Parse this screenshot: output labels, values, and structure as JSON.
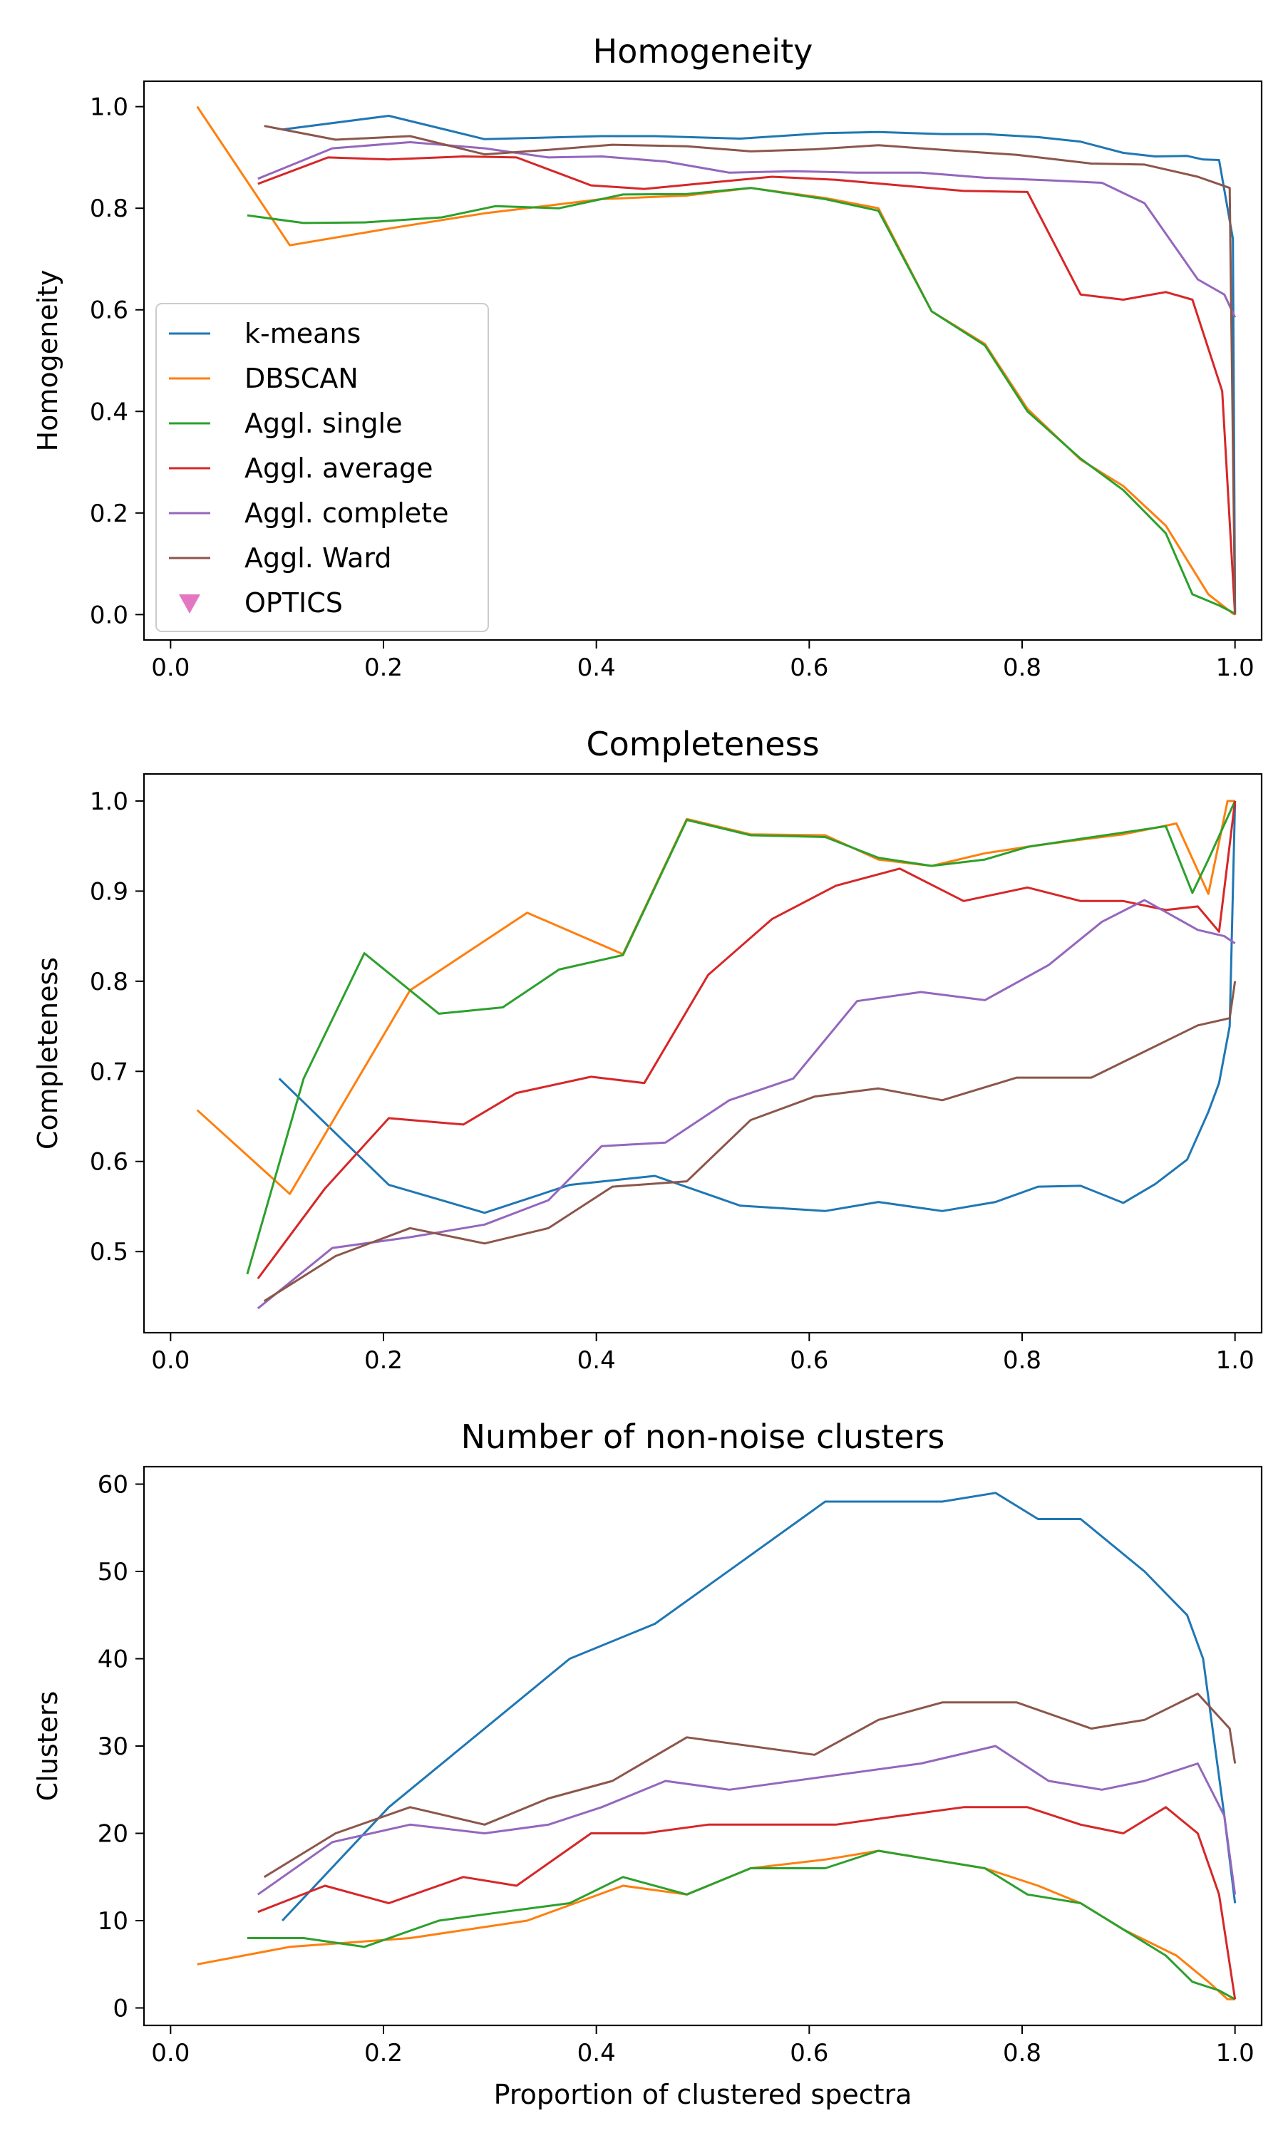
{
  "colors": {
    "k-means": "#1f77b4",
    "DBSCAN": "#ff7f0e",
    "Aggl. single": "#2ca02c",
    "Aggl. average": "#d62728",
    "Aggl. complete": "#9467bd",
    "Aggl. Ward": "#8c564b",
    "OPTICS": "#e377c2"
  },
  "legend": {
    "placement": "center-left",
    "entries": [
      {
        "label": "k-means",
        "marker": "line"
      },
      {
        "label": "DBSCAN",
        "marker": "line"
      },
      {
        "label": "Aggl. single",
        "marker": "line"
      },
      {
        "label": "Aggl. average",
        "marker": "line"
      },
      {
        "label": "Aggl. complete",
        "marker": "line"
      },
      {
        "label": "Aggl. Ward",
        "marker": "line"
      },
      {
        "label": "OPTICS",
        "marker": "triangle-down"
      }
    ]
  },
  "chart_data": [
    {
      "type": "line",
      "title": "Homogeneity",
      "xlabel": "",
      "ylabel": "Homogeneity",
      "xlim": [
        -0.025,
        1.025
      ],
      "ylim": [
        -0.05,
        1.05
      ],
      "xticks": [
        0.0,
        0.2,
        0.4,
        0.6,
        0.8,
        1.0
      ],
      "xtick_labels": [
        "0.0",
        "0.2",
        "0.4",
        "0.6",
        "0.8",
        "1.0"
      ],
      "yticks": [
        0.0,
        0.2,
        0.4,
        0.6,
        0.8,
        1.0
      ],
      "ytick_labels": [
        "0.0",
        "0.2",
        "0.4",
        "0.6",
        "0.8",
        "1.0"
      ],
      "grid": false,
      "series": [
        {
          "name": "k-means",
          "x": [
            0.105,
            0.205,
            0.295,
            0.405,
            0.455,
            0.535,
            0.615,
            0.665,
            0.725,
            0.765,
            0.815,
            0.855,
            0.895,
            0.925,
            0.955,
            0.97,
            0.985,
            0.998,
            1.0
          ],
          "y": [
            0.955,
            0.982,
            0.936,
            0.942,
            0.942,
            0.937,
            0.948,
            0.95,
            0.946,
            0.946,
            0.94,
            0.931,
            0.909,
            0.902,
            0.903,
            0.896,
            0.895,
            0.74,
            0.005
          ]
        },
        {
          "name": "DBSCAN",
          "x": [
            0.025,
            0.112,
            0.205,
            0.295,
            0.405,
            0.485,
            0.545,
            0.615,
            0.665,
            0.715,
            0.765,
            0.805,
            0.855,
            0.895,
            0.935,
            0.975,
            0.998,
            1.0
          ],
          "y": [
            1.0,
            0.727,
            0.76,
            0.79,
            0.818,
            0.825,
            0.84,
            0.82,
            0.8,
            0.597,
            0.533,
            0.405,
            0.305,
            0.253,
            0.175,
            0.04,
            0.002,
            0.0
          ]
        },
        {
          "name": "Aggl. single",
          "x": [
            0.072,
            0.125,
            0.182,
            0.255,
            0.305,
            0.365,
            0.425,
            0.485,
            0.545,
            0.615,
            0.665,
            0.715,
            0.765,
            0.805,
            0.855,
            0.895,
            0.935,
            0.96,
            0.985,
            1.0
          ],
          "y": [
            0.786,
            0.771,
            0.772,
            0.782,
            0.804,
            0.8,
            0.827,
            0.828,
            0.84,
            0.818,
            0.795,
            0.597,
            0.53,
            0.4,
            0.307,
            0.245,
            0.16,
            0.04,
            0.018,
            0.002
          ]
        },
        {
          "name": "Aggl. average",
          "x": [
            0.082,
            0.148,
            0.205,
            0.275,
            0.325,
            0.395,
            0.445,
            0.505,
            0.565,
            0.625,
            0.685,
            0.745,
            0.805,
            0.855,
            0.895,
            0.935,
            0.96,
            0.988,
            1.0
          ],
          "y": [
            0.848,
            0.9,
            0.896,
            0.902,
            0.9,
            0.845,
            0.838,
            0.85,
            0.862,
            0.856,
            0.845,
            0.834,
            0.832,
            0.63,
            0.62,
            0.635,
            0.62,
            0.44,
            0.0
          ]
        },
        {
          "name": "Aggl. complete",
          "x": [
            0.082,
            0.152,
            0.225,
            0.295,
            0.355,
            0.405,
            0.465,
            0.525,
            0.585,
            0.645,
            0.705,
            0.765,
            0.825,
            0.875,
            0.915,
            0.965,
            0.99,
            1.0
          ],
          "y": [
            0.858,
            0.918,
            0.93,
            0.918,
            0.9,
            0.902,
            0.892,
            0.87,
            0.873,
            0.87,
            0.87,
            0.86,
            0.855,
            0.85,
            0.81,
            0.66,
            0.63,
            0.585
          ]
        },
        {
          "name": "Aggl. Ward",
          "x": [
            0.088,
            0.155,
            0.225,
            0.295,
            0.355,
            0.415,
            0.485,
            0.545,
            0.605,
            0.665,
            0.725,
            0.795,
            0.865,
            0.915,
            0.965,
            0.995,
            1.0
          ],
          "y": [
            0.962,
            0.935,
            0.942,
            0.906,
            0.915,
            0.925,
            0.922,
            0.912,
            0.916,
            0.924,
            0.915,
            0.905,
            0.888,
            0.886,
            0.862,
            0.84,
            0.0
          ]
        }
      ]
    },
    {
      "type": "line",
      "title": "Completeness",
      "xlabel": "",
      "ylabel": "Completeness",
      "xlim": [
        -0.025,
        1.025
      ],
      "ylim": [
        0.41,
        1.03
      ],
      "xticks": [
        0.0,
        0.2,
        0.4,
        0.6,
        0.8,
        1.0
      ],
      "xtick_labels": [
        "0.0",
        "0.2",
        "0.4",
        "0.6",
        "0.8",
        "1.0"
      ],
      "yticks": [
        0.5,
        0.6,
        0.7,
        0.8,
        0.9,
        1.0
      ],
      "ytick_labels": [
        "0.5",
        "0.6",
        "0.7",
        "0.8",
        "0.9",
        "1.0"
      ],
      "grid": false,
      "series": [
        {
          "name": "k-means",
          "x": [
            0.102,
            0.205,
            0.295,
            0.375,
            0.455,
            0.535,
            0.615,
            0.665,
            0.725,
            0.775,
            0.815,
            0.855,
            0.895,
            0.925,
            0.955,
            0.975,
            0.985,
            0.995,
            1.0
          ],
          "y": [
            0.692,
            0.574,
            0.543,
            0.574,
            0.584,
            0.551,
            0.545,
            0.555,
            0.545,
            0.555,
            0.572,
            0.573,
            0.554,
            0.575,
            0.602,
            0.655,
            0.687,
            0.75,
            1.0
          ]
        },
        {
          "name": "DBSCAN",
          "x": [
            0.025,
            0.112,
            0.225,
            0.335,
            0.425,
            0.485,
            0.545,
            0.615,
            0.665,
            0.715,
            0.765,
            0.815,
            0.855,
            0.895,
            0.945,
            0.975,
            0.993,
            1.0
          ],
          "y": [
            0.657,
            0.564,
            0.79,
            0.876,
            0.83,
            0.98,
            0.963,
            0.962,
            0.935,
            0.928,
            0.942,
            0.951,
            0.957,
            0.963,
            0.975,
            0.897,
            1.0,
            1.0
          ]
        },
        {
          "name": "Aggl. single",
          "x": [
            0.072,
            0.125,
            0.182,
            0.252,
            0.312,
            0.365,
            0.425,
            0.485,
            0.545,
            0.615,
            0.665,
            0.715,
            0.765,
            0.805,
            0.855,
            0.895,
            0.935,
            0.96,
            0.975,
            1.0
          ],
          "y": [
            0.475,
            0.692,
            0.831,
            0.764,
            0.771,
            0.813,
            0.829,
            0.979,
            0.962,
            0.96,
            0.937,
            0.928,
            0.935,
            0.949,
            0.958,
            0.965,
            0.972,
            0.898,
            0.935,
            1.0
          ]
        },
        {
          "name": "Aggl. average",
          "x": [
            0.082,
            0.145,
            0.205,
            0.275,
            0.325,
            0.395,
            0.445,
            0.505,
            0.565,
            0.625,
            0.685,
            0.745,
            0.805,
            0.855,
            0.895,
            0.935,
            0.965,
            0.985,
            1.0
          ],
          "y": [
            0.47,
            0.57,
            0.648,
            0.641,
            0.676,
            0.694,
            0.687,
            0.807,
            0.869,
            0.906,
            0.925,
            0.889,
            0.904,
            0.889,
            0.889,
            0.879,
            0.883,
            0.855,
            1.0
          ]
        },
        {
          "name": "Aggl. complete",
          "x": [
            0.082,
            0.152,
            0.225,
            0.295,
            0.355,
            0.405,
            0.465,
            0.525,
            0.585,
            0.645,
            0.705,
            0.765,
            0.825,
            0.875,
            0.915,
            0.965,
            0.99,
            1.0
          ],
          "y": [
            0.437,
            0.504,
            0.516,
            0.53,
            0.557,
            0.617,
            0.621,
            0.668,
            0.692,
            0.778,
            0.788,
            0.779,
            0.818,
            0.866,
            0.89,
            0.857,
            0.85,
            0.842
          ]
        },
        {
          "name": "Aggl. Ward",
          "x": [
            0.088,
            0.155,
            0.225,
            0.295,
            0.355,
            0.415,
            0.485,
            0.545,
            0.605,
            0.665,
            0.725,
            0.795,
            0.865,
            0.915,
            0.965,
            0.995,
            1.0
          ],
          "y": [
            0.445,
            0.495,
            0.526,
            0.509,
            0.526,
            0.572,
            0.578,
            0.646,
            0.672,
            0.681,
            0.668,
            0.693,
            0.693,
            0.722,
            0.751,
            0.759,
            0.8
          ]
        }
      ]
    },
    {
      "type": "line",
      "title": "Number of non-noise clusters",
      "xlabel": "Proportion of clustered spectra",
      "ylabel": "Clusters",
      "xlim": [
        -0.025,
        1.025
      ],
      "ylim": [
        -2,
        62
      ],
      "xticks": [
        0.0,
        0.2,
        0.4,
        0.6,
        0.8,
        1.0
      ],
      "xtick_labels": [
        "0.0",
        "0.2",
        "0.4",
        "0.6",
        "0.8",
        "1.0"
      ],
      "yticks": [
        0,
        10,
        20,
        30,
        40,
        50,
        60
      ],
      "ytick_labels": [
        "0",
        "10",
        "20",
        "30",
        "40",
        "50",
        "60"
      ],
      "grid": false,
      "series": [
        {
          "name": "k-means",
          "x": [
            0.105,
            0.205,
            0.295,
            0.375,
            0.455,
            0.535,
            0.615,
            0.665,
            0.725,
            0.775,
            0.815,
            0.855,
            0.915,
            0.955,
            0.97,
            0.99,
            1.0
          ],
          "y": [
            10,
            23,
            32,
            40,
            44,
            51,
            58,
            58,
            58,
            59,
            56,
            56,
            50,
            45,
            40,
            22,
            12
          ]
        },
        {
          "name": "DBSCAN",
          "x": [
            0.025,
            0.112,
            0.225,
            0.335,
            0.425,
            0.485,
            0.545,
            0.615,
            0.665,
            0.715,
            0.765,
            0.815,
            0.855,
            0.895,
            0.945,
            0.975,
            0.993,
            1.0
          ],
          "y": [
            5,
            7,
            8,
            10,
            14,
            13,
            16,
            17,
            18,
            17,
            16,
            14,
            12,
            9,
            6,
            3,
            1,
            1
          ]
        },
        {
          "name": "Aggl. single",
          "x": [
            0.072,
            0.125,
            0.182,
            0.252,
            0.312,
            0.375,
            0.425,
            0.485,
            0.545,
            0.615,
            0.665,
            0.715,
            0.765,
            0.805,
            0.855,
            0.895,
            0.935,
            0.96,
            0.985,
            1.0
          ],
          "y": [
            8,
            8,
            7,
            10,
            11,
            12,
            15,
            13,
            16,
            16,
            18,
            17,
            16,
            13,
            12,
            9,
            6,
            3,
            2,
            1
          ]
        },
        {
          "name": "Aggl. average",
          "x": [
            0.082,
            0.145,
            0.205,
            0.275,
            0.325,
            0.395,
            0.445,
            0.505,
            0.565,
            0.625,
            0.685,
            0.745,
            0.805,
            0.855,
            0.895,
            0.935,
            0.965,
            0.985,
            1.0
          ],
          "y": [
            11,
            14,
            12,
            15,
            14,
            20,
            20,
            21,
            21,
            21,
            22,
            23,
            23,
            21,
            20,
            23,
            20,
            13,
            1
          ]
        },
        {
          "name": "Aggl. complete",
          "x": [
            0.082,
            0.152,
            0.225,
            0.295,
            0.355,
            0.405,
            0.465,
            0.525,
            0.705,
            0.775,
            0.825,
            0.875,
            0.915,
            0.965,
            0.99,
            1.0
          ],
          "y": [
            13,
            19,
            21,
            20,
            21,
            23,
            26,
            25,
            28,
            30,
            26,
            25,
            26,
            28,
            22,
            13
          ]
        },
        {
          "name": "Aggl. Ward",
          "x": [
            0.088,
            0.155,
            0.225,
            0.295,
            0.355,
            0.415,
            0.485,
            0.605,
            0.665,
            0.725,
            0.795,
            0.865,
            0.915,
            0.965,
            0.995,
            1.0
          ],
          "y": [
            15,
            20,
            23,
            21,
            24,
            26,
            31,
            29,
            33,
            35,
            35,
            32,
            33,
            36,
            32,
            28
          ]
        }
      ]
    }
  ]
}
